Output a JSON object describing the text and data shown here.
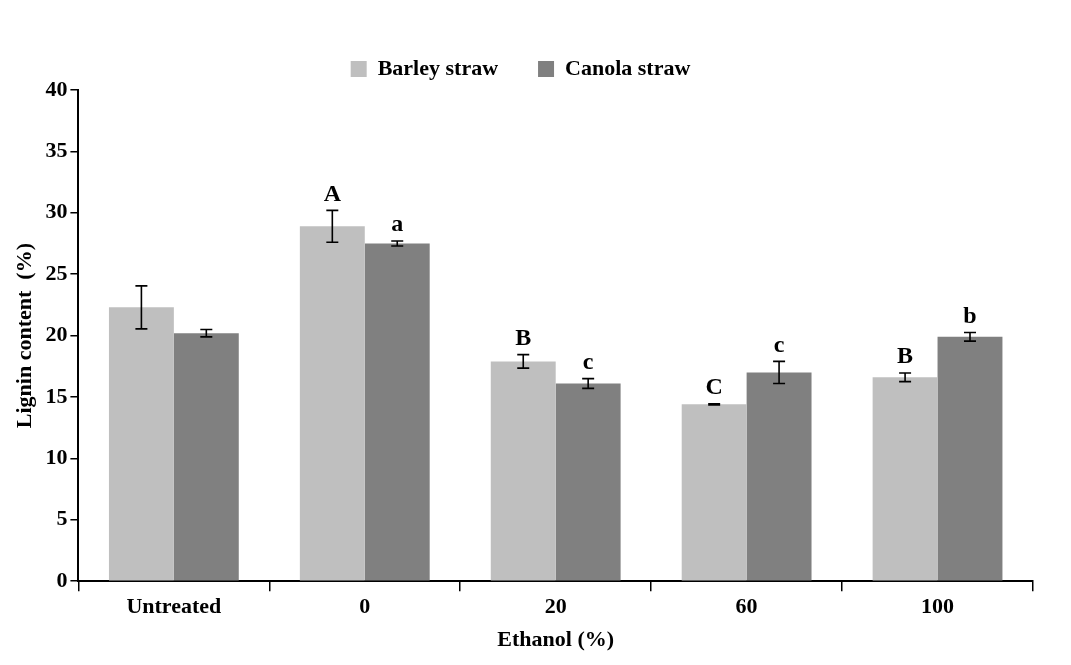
{
  "chart_data": {
    "type": "bar",
    "xlabel": "Ethanol (%)",
    "ylabel": "Lignin content  (%)",
    "categories": [
      "Untreated",
      "0",
      "20",
      "60",
      "100"
    ],
    "series": [
      {
        "name": "Barley straw",
        "color": "#bfbfbf",
        "values": [
          22.3,
          28.9,
          17.9,
          14.4,
          16.6
        ],
        "errors": [
          1.75,
          1.3,
          0.55,
          0.05,
          0.35
        ]
      },
      {
        "name": "Canola straw",
        "color": "#808080",
        "values": [
          20.2,
          27.5,
          16.1,
          17.0,
          19.9
        ],
        "errors": [
          0.3,
          0.2,
          0.4,
          0.9,
          0.35
        ]
      }
    ],
    "ylim": [
      0,
      40
    ],
    "yticks": [
      0,
      5,
      10,
      15,
      20,
      25,
      30,
      35,
      40
    ],
    "grid": false,
    "legend": "top",
    "annotations": [
      {
        "text": "A",
        "x": "0",
        "y": 28.9
      },
      {
        "text": "a",
        "x": "0",
        "y": 27.5
      },
      {
        "text": "B",
        "x": "20",
        "y": 17.9
      },
      {
        "text": "c",
        "x": "20",
        "y": 16.1
      },
      {
        "text": "C",
        "x": "60",
        "y": 14.4
      },
      {
        "text": "c",
        "x": "60",
        "y": 17.0
      },
      {
        "text": "B",
        "x": "100",
        "y": 16.6
      },
      {
        "text": "b",
        "x": "100",
        "y": 19.9
      }
    ]
  }
}
